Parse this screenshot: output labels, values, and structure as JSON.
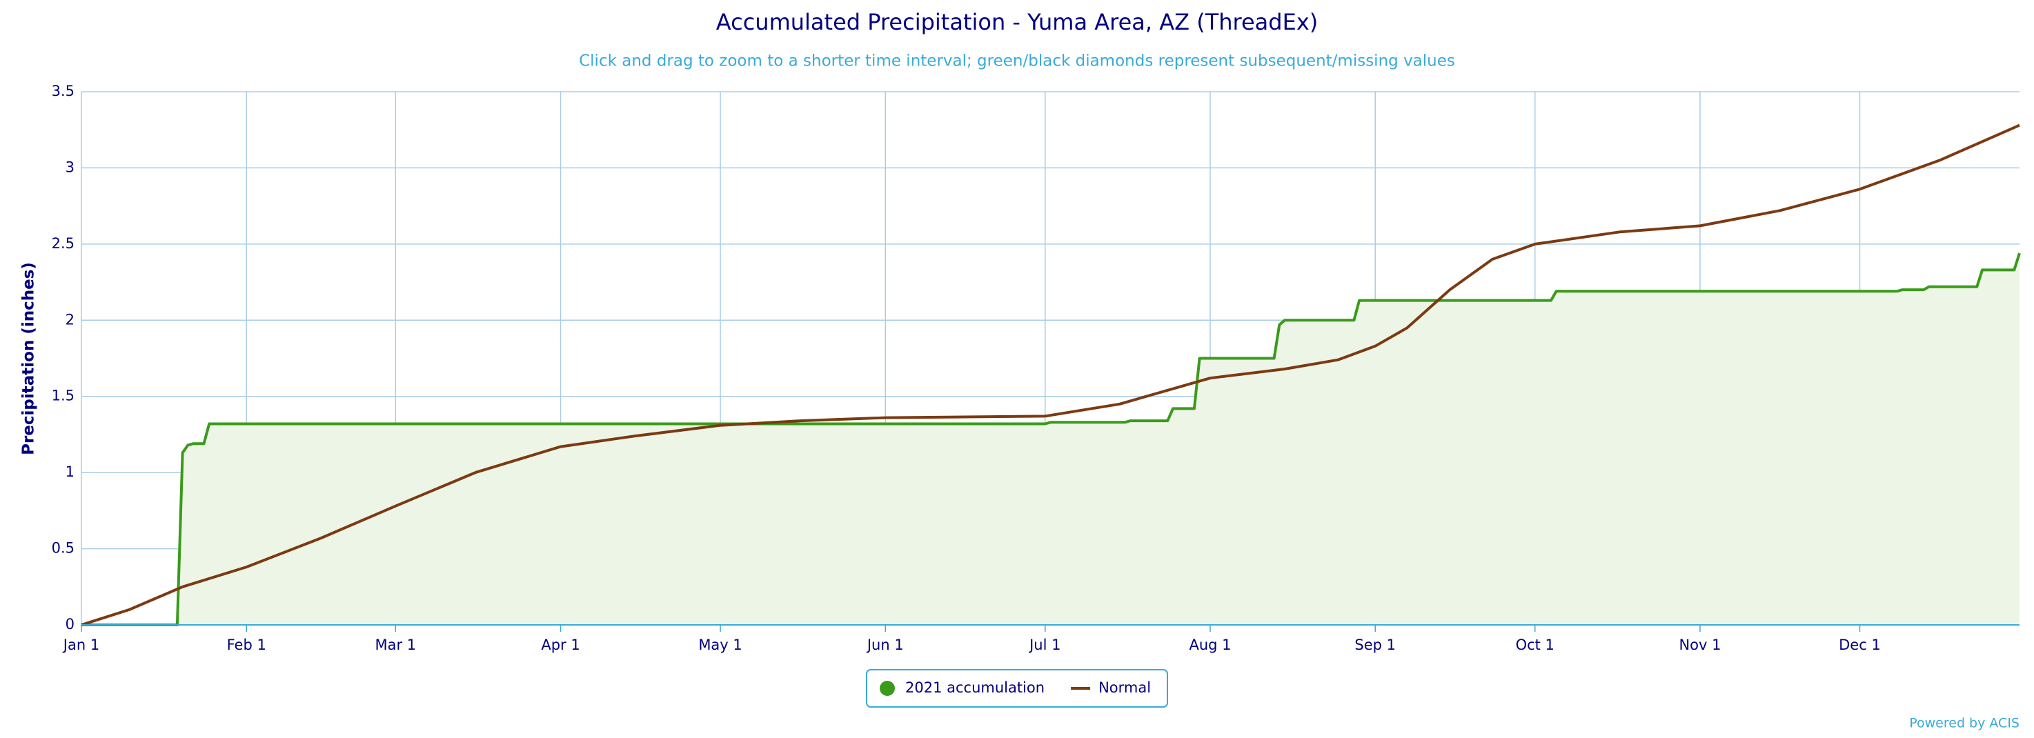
{
  "chart_data": {
    "type": "line",
    "title": "Accumulated Precipitation - Yuma Area, AZ (ThreadEx)",
    "subtitle": "Click and drag to zoom to a shorter time interval; green/black diamonds represent subsequent/missing values",
    "y_label": "Precipitation (inches)",
    "footer": "Powered by ACIS",
    "xlim": [
      1,
      365
    ],
    "xticks": [
      {
        "value": 1,
        "label": "Jan 1"
      },
      {
        "value": 32,
        "label": "Feb 1"
      },
      {
        "value": 60,
        "label": "Mar 1"
      },
      {
        "value": 91,
        "label": "Apr 1"
      },
      {
        "value": 121,
        "label": "May 1"
      },
      {
        "value": 152,
        "label": "Jun 1"
      },
      {
        "value": 182,
        "label": "Jul 1"
      },
      {
        "value": 213,
        "label": "Aug 1"
      },
      {
        "value": 244,
        "label": "Sep 1"
      },
      {
        "value": 274,
        "label": "Oct 1"
      },
      {
        "value": 305,
        "label": "Nov 1"
      },
      {
        "value": 335,
        "label": "Dec 1"
      }
    ],
    "ylim": [
      0,
      3.5
    ],
    "yticks": [
      0,
      0.5,
      1,
      1.5,
      2,
      2.5,
      3,
      3.5
    ],
    "grid": true,
    "legend": "bottom",
    "series": [
      {
        "name": "2021 accumulation",
        "color": "#3a9b1a",
        "fill": "#edf5e7",
        "x": [
          1,
          19,
          20,
          21,
          22,
          24,
          25,
          182,
          183,
          197,
          198,
          205,
          206,
          210,
          211,
          225,
          226,
          227,
          240,
          241,
          277,
          278,
          342,
          343,
          347,
          348,
          357,
          358,
          364,
          365
        ],
        "values": [
          0,
          0,
          1.13,
          1.18,
          1.19,
          1.19,
          1.32,
          1.32,
          1.33,
          1.33,
          1.34,
          1.34,
          1.42,
          1.42,
          1.75,
          1.75,
          1.97,
          2.0,
          2.0,
          2.13,
          2.13,
          2.19,
          2.19,
          2.2,
          2.2,
          2.22,
          2.22,
          2.33,
          2.33,
          2.44
        ]
      },
      {
        "name": "Normal",
        "color": "#7b3a12",
        "x": [
          1,
          10,
          20,
          32,
          46,
          60,
          75,
          91,
          105,
          121,
          136,
          152,
          182,
          196,
          213,
          227,
          237,
          244,
          250,
          258,
          266,
          274,
          290,
          305,
          320,
          335,
          350,
          365
        ],
        "values": [
          0,
          0.1,
          0.25,
          0.38,
          0.57,
          0.78,
          1.0,
          1.17,
          1.24,
          1.31,
          1.34,
          1.36,
          1.37,
          1.45,
          1.62,
          1.68,
          1.74,
          1.83,
          1.95,
          2.2,
          2.4,
          2.5,
          2.58,
          2.62,
          2.72,
          2.86,
          3.05,
          3.28
        ]
      }
    ]
  }
}
